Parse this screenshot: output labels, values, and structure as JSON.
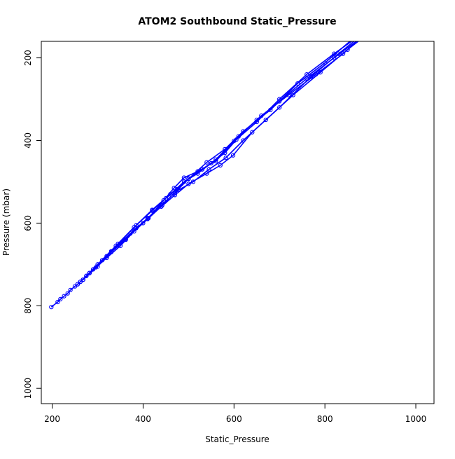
{
  "chart_data": {
    "type": "line",
    "title": "ATOM2 Southbound Static_Pressure",
    "xlabel": "Static_Pressure",
    "ylabel": "Pressure (mbar)",
    "xlim": [
      176,
      1040
    ],
    "ylim": [
      1037,
      160
    ],
    "y_reversed": true,
    "xticks": [
      200,
      400,
      600,
      800,
      1000
    ],
    "yticks": [
      200,
      400,
      600,
      800,
      1000
    ],
    "grid": false,
    "legend": "none",
    "colors": {
      "series": "#0000ff",
      "axis": "#000000"
    },
    "series": [
      {
        "values": [
          [
            198,
            803
          ],
          [
            212,
            791
          ],
          [
            218,
            784
          ],
          [
            226,
            777
          ],
          [
            234,
            770
          ],
          [
            240,
            762
          ],
          [
            250,
            753
          ],
          [
            256,
            748
          ],
          [
            262,
            742
          ],
          [
            268,
            737
          ],
          [
            275,
            728
          ],
          [
            282,
            721
          ],
          [
            296,
            707
          ],
          [
            320,
            684
          ],
          [
            350,
            655
          ],
          [
            380,
            620
          ],
          [
            412,
            588
          ],
          [
            442,
            557
          ],
          [
            470,
            526
          ],
          [
            500,
            493
          ],
          [
            540,
            453
          ],
          [
            580,
            421
          ],
          [
            620,
            378
          ],
          [
            680,
            326
          ],
          [
            740,
            262
          ],
          [
            800,
            212
          ],
          [
            860,
            155
          ]
        ]
      },
      {
        "values": [
          [
            262,
            742
          ],
          [
            282,
            721
          ],
          [
            310,
            690
          ],
          [
            345,
            650
          ],
          [
            385,
            605
          ],
          [
            420,
            570
          ],
          [
            450,
            540
          ],
          [
            475,
            518
          ],
          [
            500,
            492
          ],
          [
            530,
            470
          ],
          [
            560,
            446
          ],
          [
            600,
            401
          ],
          [
            650,
            350
          ],
          [
            700,
            305
          ],
          [
            760,
            250
          ],
          [
            820,
            200
          ],
          [
            875,
            155
          ]
        ]
      },
      {
        "values": [
          [
            275,
            728
          ],
          [
            300,
            700
          ],
          [
            340,
            655
          ],
          [
            380,
            610
          ],
          [
            420,
            568
          ],
          [
            460,
            530
          ],
          [
            490,
            500
          ],
          [
            520,
            480
          ],
          [
            550,
            455
          ],
          [
            580,
            430
          ],
          [
            605,
            398
          ],
          [
            650,
            355
          ],
          [
            700,
            300
          ],
          [
            760,
            240
          ],
          [
            820,
            190
          ],
          [
            865,
            155
          ]
        ]
      },
      {
        "values": [
          [
            282,
            721
          ],
          [
            320,
            680
          ],
          [
            360,
            640
          ],
          [
            400,
            600
          ],
          [
            440,
            560
          ],
          [
            470,
            532
          ],
          [
            500,
            505
          ],
          [
            540,
            480
          ],
          [
            570,
            460
          ],
          [
            598,
            436
          ],
          [
            640,
            380
          ],
          [
            700,
            320
          ],
          [
            770,
            245
          ],
          [
            830,
            190
          ],
          [
            875,
            150
          ]
        ]
      },
      {
        "values": [
          [
            268,
            737
          ],
          [
            300,
            705
          ],
          [
            330,
            670
          ],
          [
            362,
            640
          ],
          [
            385,
            612
          ],
          [
            410,
            590
          ],
          [
            445,
            545
          ],
          [
            468,
            515
          ],
          [
            490,
            490
          ],
          [
            520,
            475
          ],
          [
            560,
            450
          ],
          [
            610,
            390
          ],
          [
            660,
            340
          ],
          [
            720,
            290
          ],
          [
            780,
            240
          ],
          [
            840,
            190
          ],
          [
            880,
            150
          ]
        ]
      },
      {
        "values": [
          [
            256,
            748
          ],
          [
            290,
            712
          ],
          [
            330,
            668
          ],
          [
            372,
            625
          ],
          [
            410,
            588
          ],
          [
            448,
            548
          ],
          [
            478,
            520
          ],
          [
            510,
            500
          ],
          [
            545,
            470
          ],
          [
            582,
            442
          ],
          [
            620,
            400
          ],
          [
            670,
            350
          ],
          [
            730,
            290
          ],
          [
            790,
            235
          ],
          [
            850,
            180
          ],
          [
            885,
            150
          ]
        ]
      }
    ]
  }
}
